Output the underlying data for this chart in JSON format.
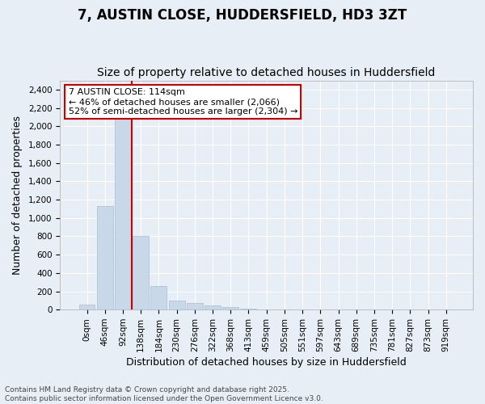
{
  "title_line1": "7, AUSTIN CLOSE, HUDDERSFIELD, HD3 3ZT",
  "title_line2": "Size of property relative to detached houses in Huddersfield",
  "xlabel": "Distribution of detached houses by size in Huddersfield",
  "ylabel": "Number of detached properties",
  "bar_color": "#c8d8e8",
  "bar_edgecolor": "#a8bece",
  "bin_labels": [
    "0sqm",
    "46sqm",
    "92sqm",
    "138sqm",
    "184sqm",
    "230sqm",
    "276sqm",
    "322sqm",
    "368sqm",
    "413sqm",
    "459sqm",
    "505sqm",
    "551sqm",
    "597sqm",
    "643sqm",
    "689sqm",
    "735sqm",
    "781sqm",
    "827sqm",
    "873sqm",
    "919sqm"
  ],
  "bar_values": [
    55,
    1130,
    2100,
    800,
    260,
    100,
    70,
    50,
    30,
    15,
    5,
    0,
    0,
    0,
    0,
    0,
    0,
    0,
    0,
    0,
    0
  ],
  "ylim": [
    0,
    2500
  ],
  "yticks": [
    0,
    200,
    400,
    600,
    800,
    1000,
    1200,
    1400,
    1600,
    1800,
    2000,
    2200,
    2400
  ],
  "vline_x": 2.5,
  "vline_color": "#cc0000",
  "annotation_text": "7 AUSTIN CLOSE: 114sqm\n← 46% of detached houses are smaller (2,066)\n52% of semi-detached houses are larger (2,304) →",
  "annotation_box_facecolor": "#ffffff",
  "annotation_box_edgecolor": "#cc0000",
  "background_color": "#e8eef5",
  "plot_background": "#e8eef5",
  "footer_line1": "Contains HM Land Registry data © Crown copyright and database right 2025.",
  "footer_line2": "Contains public sector information licensed under the Open Government Licence v3.0.",
  "title_fontsize": 12,
  "subtitle_fontsize": 10,
  "axis_label_fontsize": 9,
  "tick_fontsize": 7.5,
  "annotation_fontsize": 8,
  "footer_fontsize": 6.5
}
